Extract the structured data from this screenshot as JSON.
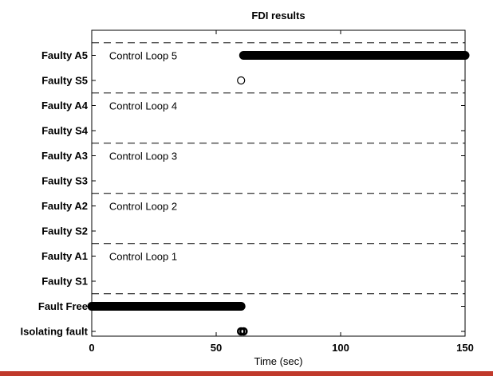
{
  "chart_data": {
    "type": "scatter",
    "title": "FDI results",
    "xlabel": "Time (sec)",
    "ylabel": "",
    "xlim": [
      0,
      150
    ],
    "xticks": [
      0,
      50,
      100,
      150
    ],
    "categories": [
      "Isolating fault",
      "Fault Free",
      "Faulty  S1",
      "Faulty  A1",
      "Faulty  S2",
      "Faulty  A2",
      "Faulty  S3",
      "Faulty  A3",
      "Faulty  S4",
      "Faulty  A4",
      "Faulty  S5",
      "Faulty  A5"
    ],
    "separators_after_category_index": [
      1,
      3,
      5,
      7,
      9,
      11
    ],
    "group_annotations": [
      {
        "text": "Control Loop 1",
        "category": "Faulty  A1"
      },
      {
        "text": "Control Loop 2",
        "category": "Faulty  A2"
      },
      {
        "text": "Control Loop 3",
        "category": "Faulty  A3"
      },
      {
        "text": "Control Loop 4",
        "category": "Faulty  A4"
      },
      {
        "text": "Control Loop 5",
        "category": "Faulty  A5"
      }
    ],
    "series": [
      {
        "category": "Fault Free",
        "x_start": 0,
        "x_end": 60,
        "marker": "filled-dense"
      },
      {
        "category": "Faulty  A5",
        "x_start": 61,
        "x_end": 150,
        "marker": "filled-dense"
      },
      {
        "category": "Faulty  S5",
        "x": [
          60
        ],
        "marker": "open-circle"
      },
      {
        "category": "Isolating fault",
        "x": [
          60,
          61
        ],
        "marker": "bold-circle"
      }
    ],
    "grid": false,
    "legend": "none"
  },
  "colors": {
    "marker": "#000000",
    "axis": "#000000",
    "background": "#ffffff",
    "bottom_bar": "#c0392b"
  }
}
